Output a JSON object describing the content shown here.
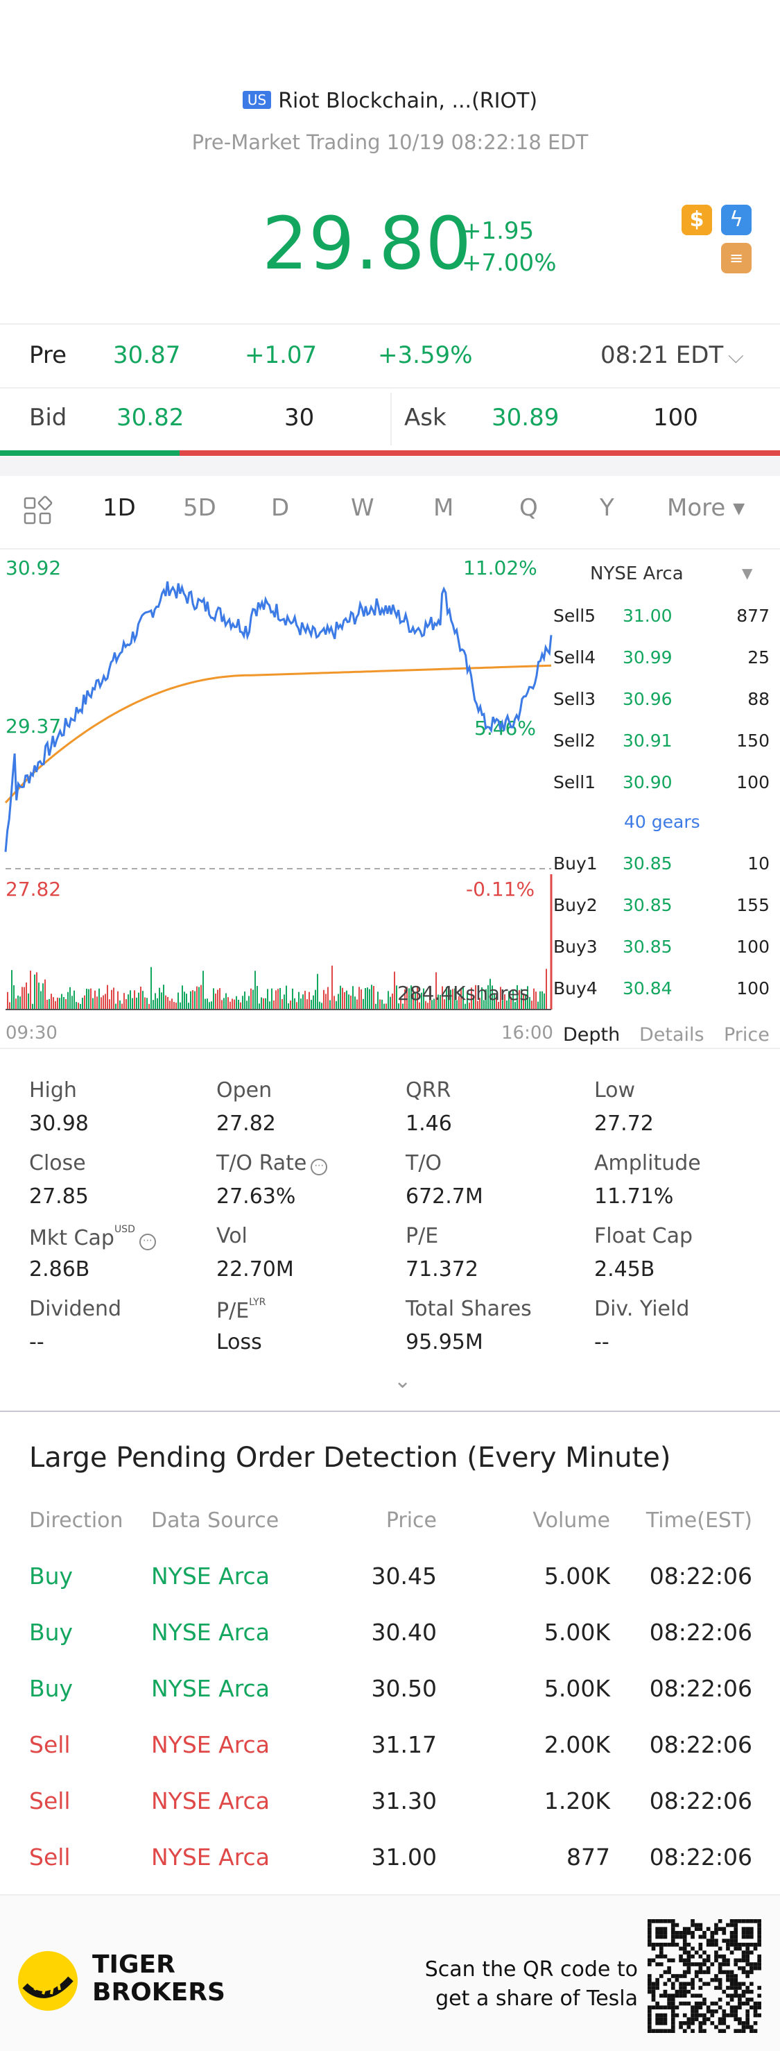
{
  "header": {
    "market_badge": "US",
    "title": "Riot Blockchain, ...(RIOT)",
    "subtitle": "Pre-Market Trading 10/19 08:22:18 EDT",
    "price": "29.80",
    "change": "+1.95",
    "change_pct": "+7.00%",
    "icons": [
      "dollar-icon",
      "bolt-icon",
      "stack-icon"
    ]
  },
  "pre": {
    "label": "Pre",
    "price": "30.87",
    "change": "+1.07",
    "change_pct": "+3.59%",
    "time": "08:21 EDT"
  },
  "quote": {
    "bid_label": "Bid",
    "bid_price": "30.82",
    "bid_size": "30",
    "ask_label": "Ask",
    "ask_price": "30.89",
    "ask_size": "100",
    "bid_fraction": 0.23
  },
  "tabs": [
    "1D",
    "5D",
    "D",
    "W",
    "M",
    "Q",
    "Y",
    "More ▾"
  ],
  "chart": {
    "high": "30.92",
    "high_pct": "11.02%",
    "mid": "29.37",
    "mid_pct": "5.46%",
    "low": "27.82",
    "low_pct": "-0.11%",
    "volume_label": "284.4Kshares",
    "start_time": "09:30",
    "end_time": "16:00"
  },
  "book": {
    "exchange": "NYSE Arca",
    "sells": [
      {
        "label": "Sell5",
        "price": "31.00",
        "vol": "877"
      },
      {
        "label": "Sell4",
        "price": "30.99",
        "vol": "25"
      },
      {
        "label": "Sell3",
        "price": "30.96",
        "vol": "88"
      },
      {
        "label": "Sell2",
        "price": "30.91",
        "vol": "150"
      },
      {
        "label": "Sell1",
        "price": "30.90",
        "vol": "100"
      }
    ],
    "gears": "40 gears",
    "buys": [
      {
        "label": "Buy1",
        "price": "30.85",
        "vol": "10"
      },
      {
        "label": "Buy2",
        "price": "30.85",
        "vol": "155"
      },
      {
        "label": "Buy3",
        "price": "30.85",
        "vol": "100"
      },
      {
        "label": "Buy4",
        "price": "30.84",
        "vol": "100"
      }
    ],
    "tabs": [
      "Depth",
      "Details",
      "Price"
    ]
  },
  "stats": [
    {
      "label": "High",
      "value": "30.98"
    },
    {
      "label": "Open",
      "value": "27.82"
    },
    {
      "label": "QRR",
      "value": "1.46"
    },
    {
      "label": "Low",
      "value": "27.72"
    },
    {
      "label": "Close",
      "value": "27.85"
    },
    {
      "label": "T/O Rate",
      "value": "27.63%"
    },
    {
      "label": "T/O",
      "value": "672.7M"
    },
    {
      "label": "Amplitude",
      "value": "11.71%"
    },
    {
      "label": "Mkt Cap",
      "value": "2.86B",
      "sup": "USD"
    },
    {
      "label": "Vol",
      "value": "22.70M"
    },
    {
      "label": "P/E",
      "value": "71.372"
    },
    {
      "label": "Float Cap",
      "value": "2.45B"
    },
    {
      "label": "Dividend",
      "value": "--"
    },
    {
      "label": "P/E",
      "value": "Loss",
      "sup": "LYR"
    },
    {
      "label": "Total Shares",
      "value": "95.95M"
    },
    {
      "label": "Div. Yield",
      "value": "--"
    }
  ],
  "orders": {
    "title": "Large Pending Order Detection (Every Minute)",
    "headers": [
      "Direction",
      "Data Source",
      "Price",
      "Volume",
      "Time(EST)"
    ],
    "rows": [
      {
        "dir": "Buy",
        "source": "NYSE Arca",
        "price": "30.45",
        "volume": "5.00K",
        "time": "08:22:06",
        "side": "buy"
      },
      {
        "dir": "Buy",
        "source": "NYSE Arca",
        "price": "30.40",
        "volume": "5.00K",
        "time": "08:22:06",
        "side": "buy"
      },
      {
        "dir": "Buy",
        "source": "NYSE Arca",
        "price": "30.50",
        "volume": "5.00K",
        "time": "08:22:06",
        "side": "buy"
      },
      {
        "dir": "Sell",
        "source": "NYSE Arca",
        "price": "31.17",
        "volume": "2.00K",
        "time": "08:22:06",
        "side": "sell"
      },
      {
        "dir": "Sell",
        "source": "NYSE Arca",
        "price": "31.30",
        "volume": "1.20K",
        "time": "08:22:06",
        "side": "sell"
      },
      {
        "dir": "Sell",
        "source": "NYSE Arca",
        "price": "31.00",
        "volume": "877",
        "time": "08:22:06",
        "side": "sell"
      }
    ]
  },
  "footer": {
    "brand_line1": "TIGER",
    "brand_line2": "BROKERS",
    "promo_line1": "Scan the QR code to",
    "promo_line2": "get a share of Tesla"
  },
  "colors": {
    "up": "#13a65f",
    "down": "#e04848",
    "line": "#3c7be6",
    "avg": "#f0962a"
  }
}
